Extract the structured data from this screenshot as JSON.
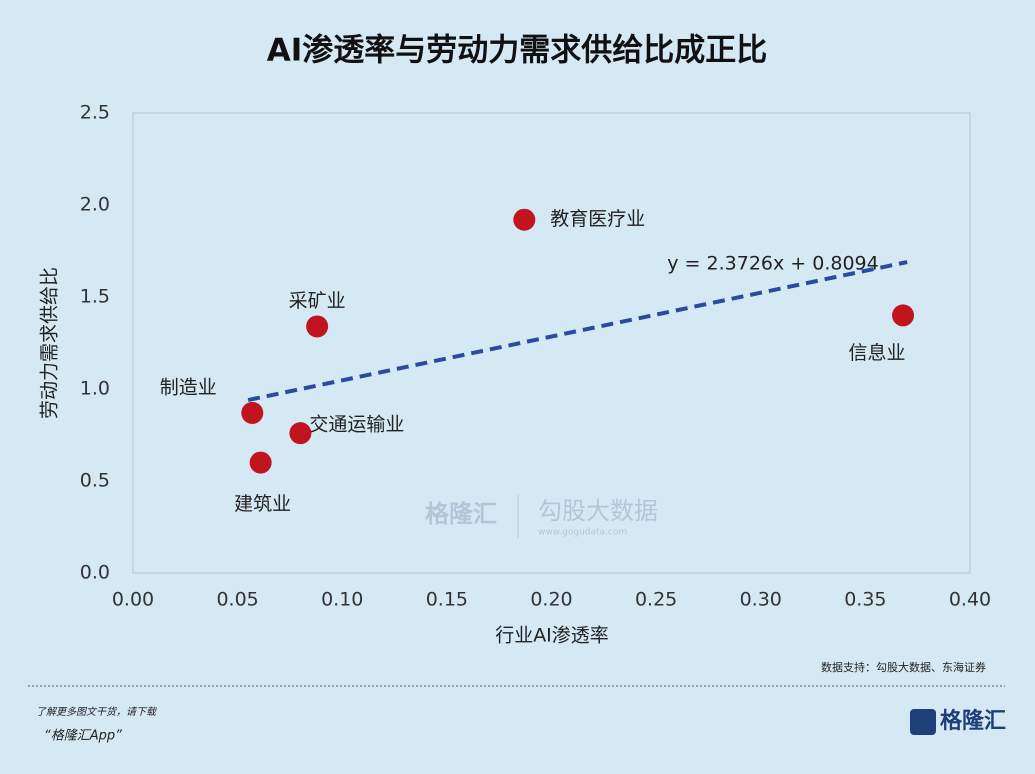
{
  "chart_data": {
    "type": "scatter",
    "title": "AI渗透率与劳动力需求供给比成正比",
    "x_label": "行业AI渗透率",
    "y_label": "劳动力需求供给比",
    "series": [
      {
        "color": "#c0141e",
        "labels": [
          "制造业",
          "建筑业",
          "交通运输业",
          "采矿业",
          "教育医疗业",
          "信息业"
        ],
        "x": [
          0.057,
          0.061,
          0.08,
          0.088,
          0.187,
          0.368
        ],
        "values": [
          0.87,
          0.6,
          0.76,
          1.34,
          1.92,
          1.4
        ]
      }
    ],
    "trendline": {
      "label": "y = 2.3726x + 0.8094",
      "color": "#2b4aa0",
      "x": [
        0.055,
        0.37
      ],
      "y": [
        0.94,
        1.69
      ]
    },
    "xlim": [
      0,
      0.4
    ],
    "xticks": [
      {
        "value": 0,
        "label": "0.00"
      },
      0.05,
      {
        "value": 0.1,
        "label": "0.10"
      },
      0.15,
      {
        "value": 0.2,
        "label": "0.20"
      },
      0.25,
      {
        "value": 0.3,
        "label": "0.30"
      },
      0.35,
      {
        "value": 0.4,
        "label": "0.40"
      }
    ],
    "ylim": [
      0,
      2.5
    ],
    "yticks": [
      {
        "value": 0,
        "label": "0.0"
      },
      0.5,
      {
        "value": 1,
        "label": "1.0"
      },
      1.5,
      {
        "value": 2,
        "label": "2.0"
      },
      2.5
    ],
    "grid": false,
    "source": "数据支持：勾股大数据、东海证券",
    "watermark": [
      "格隆汇",
      "勾股大数据",
      "www.gogudata.com"
    ]
  },
  "footer": {
    "promo": "了解更多图文干货，请下载",
    "app": "“格隆汇App”",
    "logo": "格隆汇"
  }
}
